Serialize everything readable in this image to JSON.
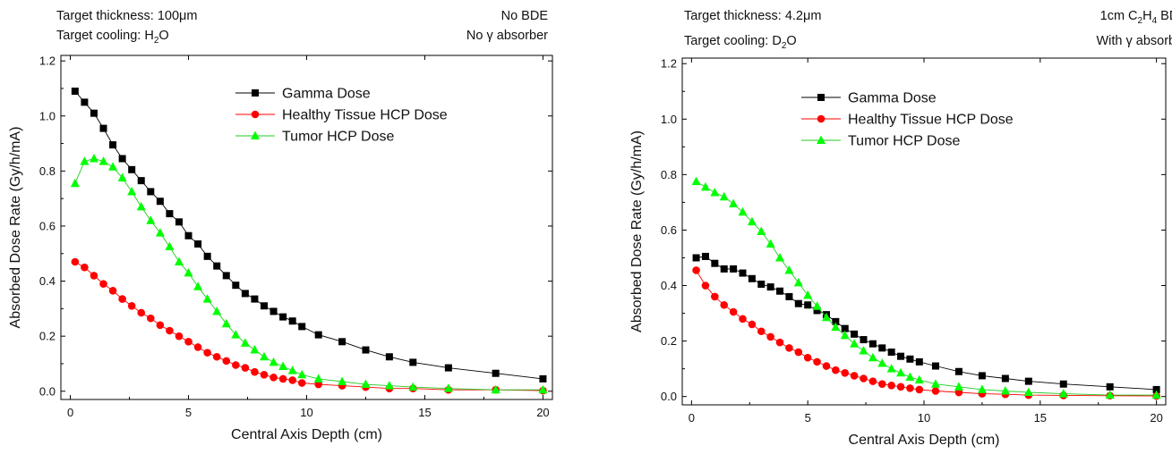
{
  "chart_data": [
    {
      "type": "line",
      "header": {
        "thickness_prefix": "Target thickness: 100",
        "thickness_unit": "μm",
        "cooling_prefix": "Target cooling: H",
        "cooling_sub": "2",
        "cooling_suffix": "O",
        "bde": "No BDE",
        "absorber_prefix": "No ",
        "absorber_symbol": "γ",
        "absorber_suffix": " absorber"
      },
      "xlabel": "Central Axis Depth (cm)",
      "ylabel": "Absorbed Dose Rate (Gy/h/mA)",
      "xlim": [
        -0.4,
        20.4
      ],
      "ylim": [
        -0.03,
        1.22
      ],
      "xticks": [
        0,
        5,
        10,
        15,
        20
      ],
      "yticks": [
        0.0,
        0.2,
        0.4,
        0.6,
        0.8,
        1.0,
        1.2
      ],
      "legend_position": "top-right",
      "series": [
        {
          "name": "Gamma Dose",
          "color": "#000000",
          "marker": "square",
          "x": [
            0.2,
            0.6,
            1.0,
            1.4,
            1.8,
            2.2,
            2.6,
            3.0,
            3.4,
            3.8,
            4.2,
            4.6,
            5.0,
            5.4,
            5.8,
            6.2,
            6.6,
            7.0,
            7.4,
            7.8,
            8.2,
            8.6,
            9.0,
            9.4,
            9.8,
            10.5,
            11.5,
            12.5,
            13.5,
            14.5,
            16.0,
            18.0,
            20.0
          ],
          "y": [
            1.09,
            1.05,
            1.01,
            0.955,
            0.895,
            0.845,
            0.805,
            0.765,
            0.725,
            0.69,
            0.645,
            0.615,
            0.565,
            0.535,
            0.49,
            0.455,
            0.42,
            0.385,
            0.355,
            0.335,
            0.31,
            0.29,
            0.27,
            0.255,
            0.235,
            0.205,
            0.18,
            0.15,
            0.125,
            0.105,
            0.085,
            0.065,
            0.045
          ]
        },
        {
          "name": "Healthy Tissue HCP Dose",
          "color": "#ff0000",
          "marker": "circle",
          "x": [
            0.2,
            0.6,
            1.0,
            1.4,
            1.8,
            2.2,
            2.6,
            3.0,
            3.4,
            3.8,
            4.2,
            4.6,
            5.0,
            5.4,
            5.8,
            6.2,
            6.6,
            7.0,
            7.4,
            7.8,
            8.2,
            8.6,
            9.0,
            9.4,
            9.8,
            10.5,
            11.5,
            12.5,
            13.5,
            14.5,
            16.0,
            18.0,
            20.0
          ],
          "y": [
            0.47,
            0.45,
            0.42,
            0.39,
            0.365,
            0.335,
            0.31,
            0.285,
            0.265,
            0.24,
            0.22,
            0.2,
            0.18,
            0.16,
            0.14,
            0.125,
            0.11,
            0.095,
            0.085,
            0.07,
            0.06,
            0.05,
            0.045,
            0.04,
            0.03,
            0.025,
            0.02,
            0.015,
            0.01,
            0.01,
            0.005,
            0.005,
            0.002
          ]
        },
        {
          "name": "Tumor HCP Dose",
          "color": "#00ff00",
          "marker": "triangle",
          "x": [
            0.2,
            0.6,
            1.0,
            1.4,
            1.8,
            2.2,
            2.6,
            3.0,
            3.4,
            3.8,
            4.2,
            4.6,
            5.0,
            5.4,
            5.8,
            6.2,
            6.6,
            7.0,
            7.4,
            7.8,
            8.2,
            8.6,
            9.0,
            9.4,
            9.8,
            10.5,
            11.5,
            12.5,
            13.5,
            14.5,
            16.0,
            18.0,
            20.0
          ],
          "y": [
            0.755,
            0.835,
            0.845,
            0.835,
            0.815,
            0.775,
            0.725,
            0.67,
            0.62,
            0.575,
            0.525,
            0.47,
            0.43,
            0.38,
            0.335,
            0.29,
            0.245,
            0.205,
            0.175,
            0.15,
            0.125,
            0.105,
            0.09,
            0.075,
            0.06,
            0.045,
            0.035,
            0.025,
            0.02,
            0.015,
            0.01,
            0.005,
            0.005
          ]
        }
      ]
    },
    {
      "type": "line",
      "header": {
        "thickness_prefix": "Target thickness: 4.2",
        "thickness_unit": "μm",
        "cooling_prefix": "Target cooling: D",
        "cooling_sub": "2",
        "cooling_suffix": "O",
        "bde_prefix": "1cm C",
        "bde_sub1": "2",
        "bde_mid": "H",
        "bde_sub2": "4",
        "bde_suffix": " BDE",
        "absorber_prefix": "With ",
        "absorber_symbol": "γ",
        "absorber_suffix": " absorber"
      },
      "xlabel": "Central Axis Depth (cm)",
      "ylabel": "Absorbed Dose Rate (Gy/h/mA)",
      "xlim": [
        -0.4,
        20.4
      ],
      "ylim": [
        -0.03,
        1.22
      ],
      "xticks": [
        0,
        5,
        10,
        15,
        20
      ],
      "yticks": [
        0.0,
        0.2,
        0.4,
        0.6,
        0.8,
        1.0,
        1.2
      ],
      "legend_position": "top-center",
      "series": [
        {
          "name": "Gamma Dose",
          "color": "#000000",
          "marker": "square",
          "x": [
            0.2,
            0.6,
            1.0,
            1.4,
            1.8,
            2.2,
            2.6,
            3.0,
            3.4,
            3.8,
            4.2,
            4.6,
            5.0,
            5.4,
            5.8,
            6.2,
            6.6,
            7.0,
            7.4,
            7.8,
            8.2,
            8.6,
            9.0,
            9.4,
            9.8,
            10.5,
            11.5,
            12.5,
            13.5,
            14.5,
            16.0,
            18.0,
            20.0
          ],
          "y": [
            0.5,
            0.505,
            0.48,
            0.46,
            0.46,
            0.445,
            0.425,
            0.405,
            0.395,
            0.38,
            0.36,
            0.335,
            0.33,
            0.31,
            0.295,
            0.27,
            0.245,
            0.225,
            0.205,
            0.19,
            0.175,
            0.16,
            0.145,
            0.135,
            0.125,
            0.11,
            0.09,
            0.075,
            0.065,
            0.055,
            0.045,
            0.035,
            0.025
          ]
        },
        {
          "name": "Healthy Tissue HCP Dose",
          "color": "#ff0000",
          "marker": "circle",
          "x": [
            0.2,
            0.6,
            1.0,
            1.4,
            1.8,
            2.2,
            2.6,
            3.0,
            3.4,
            3.8,
            4.2,
            4.6,
            5.0,
            5.4,
            5.8,
            6.2,
            6.6,
            7.0,
            7.4,
            7.8,
            8.2,
            8.6,
            9.0,
            9.4,
            9.8,
            10.5,
            11.5,
            12.5,
            13.5,
            14.5,
            16.0,
            18.0,
            20.0
          ],
          "y": [
            0.455,
            0.4,
            0.36,
            0.33,
            0.305,
            0.28,
            0.26,
            0.235,
            0.215,
            0.195,
            0.175,
            0.16,
            0.14,
            0.125,
            0.11,
            0.095,
            0.085,
            0.075,
            0.065,
            0.055,
            0.045,
            0.04,
            0.035,
            0.03,
            0.025,
            0.02,
            0.015,
            0.01,
            0.008,
            0.005,
            0.004,
            0.003,
            0.002
          ]
        },
        {
          "name": "Tumor HCP Dose",
          "color": "#00ff00",
          "marker": "triangle",
          "x": [
            0.2,
            0.6,
            1.0,
            1.4,
            1.8,
            2.2,
            2.6,
            3.0,
            3.4,
            3.8,
            4.2,
            4.6,
            5.0,
            5.4,
            5.8,
            6.2,
            6.6,
            7.0,
            7.4,
            7.8,
            8.2,
            8.6,
            9.0,
            9.4,
            9.8,
            10.5,
            11.5,
            12.5,
            13.5,
            14.5,
            16.0,
            18.0,
            20.0
          ],
          "y": [
            0.775,
            0.755,
            0.735,
            0.72,
            0.695,
            0.665,
            0.63,
            0.595,
            0.55,
            0.5,
            0.455,
            0.41,
            0.365,
            0.325,
            0.285,
            0.25,
            0.22,
            0.19,
            0.165,
            0.14,
            0.12,
            0.1,
            0.085,
            0.07,
            0.06,
            0.045,
            0.035,
            0.025,
            0.02,
            0.015,
            0.01,
            0.005,
            0.005
          ]
        }
      ]
    }
  ]
}
